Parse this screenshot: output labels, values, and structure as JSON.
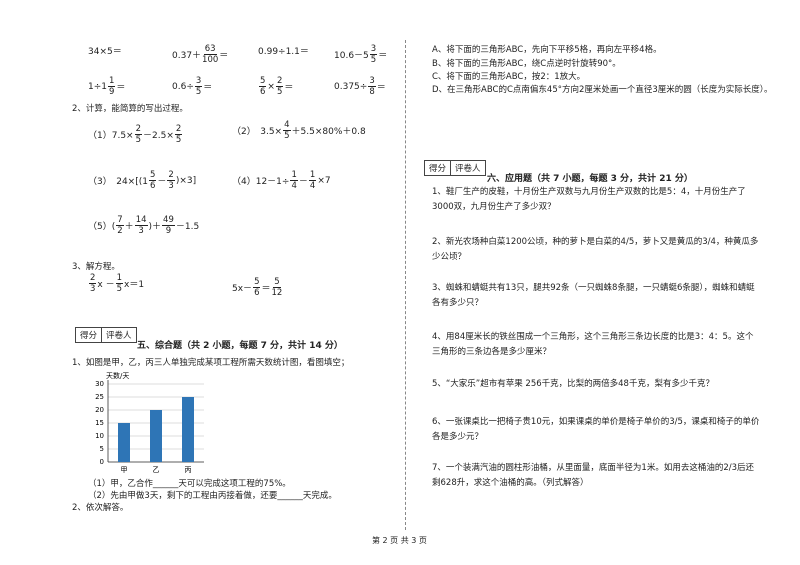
{
  "calc": {
    "row1": [
      {
        "parts": [
          "34×5＝"
        ]
      },
      {
        "parts": [
          "0.37＋",
          {
            "n": "63",
            "d": "100"
          },
          "＝"
        ]
      },
      {
        "parts": [
          "0.99÷1.1＝"
        ]
      },
      {
        "parts": [
          "10.6－5",
          {
            "n": "3",
            "d": "5"
          },
          "＝"
        ]
      }
    ],
    "row2": [
      {
        "parts": [
          "1÷1",
          {
            "n": "1",
            "d": "9"
          },
          "＝"
        ]
      },
      {
        "parts": [
          "0.6÷",
          {
            "n": "3",
            "d": "5"
          },
          "＝"
        ]
      },
      {
        "parts": [
          {
            "n": "5",
            "d": "6"
          },
          "×",
          {
            "n": "2",
            "d": "5"
          },
          "＝"
        ]
      },
      {
        "parts": [
          "0.375÷",
          {
            "n": "3",
            "d": "8"
          },
          "＝"
        ]
      }
    ]
  },
  "q2": {
    "title": "2、计算，能简算的写出过程。",
    "items": [
      {
        "parts": [
          "（1）7.5×",
          {
            "n": "2",
            "d": "5"
          },
          "－2.5×",
          {
            "n": "2",
            "d": "5"
          }
        ]
      },
      {
        "parts": [
          "（2）　3.5×",
          {
            "n": "4",
            "d": "5"
          },
          "＋5.5×80%＋0.8"
        ]
      },
      {
        "parts": [
          "（3）　24×[(1",
          {
            "n": "5",
            "d": "6"
          },
          "－",
          {
            "n": "2",
            "d": "3"
          },
          ")×3]"
        ]
      },
      {
        "parts": [
          "（4）12－1÷",
          {
            "n": "1",
            "d": "4"
          },
          "－",
          {
            "n": "1",
            "d": "4"
          },
          "×7"
        ]
      },
      {
        "parts": [
          "（5）(",
          {
            "n": "7",
            "d": "2"
          },
          "＋",
          {
            "n": "14",
            "d": "3"
          },
          ")＋",
          {
            "n": "49",
            "d": "9"
          },
          "－1.5"
        ]
      }
    ]
  },
  "q3": {
    "title": "3、解方程。",
    "items": [
      {
        "parts": [
          {
            "n": "2",
            "d": "3"
          },
          "x －",
          {
            "n": "1",
            "d": "5"
          },
          "x＝1"
        ]
      },
      {
        "parts": [
          "5x－",
          {
            "n": "5",
            "d": "6"
          },
          "＝",
          {
            "n": "5",
            "d": "12"
          }
        ]
      }
    ]
  },
  "score_box": {
    "score": "得分",
    "grader": "评卷人"
  },
  "section5": {
    "title": "五、综合题（共 2 小题，每题 7 分，共计 14 分）",
    "q1": "1、如图是甲，乙，丙三人单独完成某项工程所需天数统计图，看图填空；",
    "figure": {
      "type": "bar",
      "y_label": "天数/天",
      "categories": [
        "甲",
        "乙",
        "丙"
      ],
      "values": [
        15,
        20,
        25
      ],
      "color": "#2e75b6",
      "ylim": [
        0,
        30
      ],
      "yticks": [
        0,
        5,
        10,
        15,
        20,
        25,
        30
      ],
      "grid": true
    },
    "sub1": "（1）甲，乙合作______天可以完成这项工程的75%。",
    "sub2": "（2）先由甲做3天，剩下的工程由丙接着做，还要______天完成。",
    "q2": "2、依次解答。"
  },
  "transform": [
    "A、将下面的三角形ABC，先向下平移5格，再向左平移4格。",
    "B、将下面的三角形ABC，绕C点逆时针旋转90°。",
    "C、将下面的三角形ABC，按2：1放大。",
    "D、在三角形ABC的C点南偏东45°方向2厘米处画一个直径3厘米的圆（长度为实际长度）。"
  ],
  "section6": {
    "title": "六、应用题（共 7 小题，每题 3 分，共计 21 分）",
    "problems": [
      "1、鞋厂生产的皮鞋，十月份生产双数与九月份生产双数的比是5：4，十月份生产了3000双，九月份生产了多少双？",
      "2、新光农场种白菜1200公顷，种的萝卜是白菜的4/5，萝卜又是黄瓜的3/4，种黄瓜多少公顷？",
      "3、蜘蛛和蜻蜓共有13只，腿共92条（一只蜘蛛8条腿，一只蜻蜓6条腿），蜘蛛和蜻蜓各有多少只？",
      "4、用84厘米长的铁丝围成一个三角形，这个三角形三条边长度的比是3：4：5。这个三角形的三条边各是多少厘米？",
      "5、“大家乐”超市有苹果 256千克，比梨的两倍多48千克，梨有多少千克？",
      "6、一张课桌比一把椅子贵10元，如果课桌的单价是椅子单价的3/5，课桌和椅子的单价各是多少元？",
      "7、一个装满汽油的圆柱形油桶，从里面量，底面半径为1米。如用去这桶油的2/3后还剩628升，求这个油桶的高。（列式解答）"
    ]
  },
  "footer": "第 2 页 共 3 页"
}
